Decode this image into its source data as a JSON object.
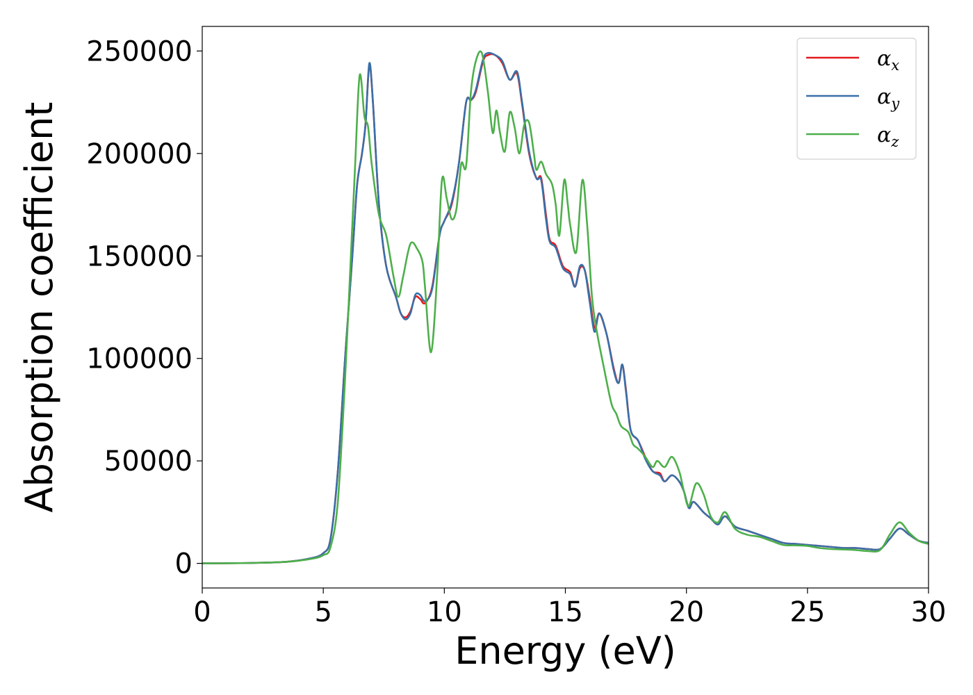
{
  "chart_data": {
    "type": "line",
    "title": "",
    "xlabel": "Energy (eV)",
    "ylabel": "Absorption coefficient",
    "xlim": [
      0,
      30
    ],
    "ylim": [
      -12000,
      262000
    ],
    "xticks": [
      0,
      5,
      10,
      15,
      20,
      25,
      30
    ],
    "yticks": [
      0,
      50000,
      100000,
      150000,
      200000,
      250000
    ],
    "grid": false,
    "legend_position": "top-right",
    "series": [
      {
        "name": "α_x",
        "legend_main": "α",
        "legend_sub": "x",
        "color": "#e41a1c",
        "points": [
          [
            0,
            0
          ],
          [
            2,
            200
          ],
          [
            3.5,
            800
          ],
          [
            4.5,
            2500
          ],
          [
            5,
            5000
          ],
          [
            5.3,
            12000
          ],
          [
            5.6,
            45000
          ],
          [
            5.9,
            100000
          ],
          [
            6.2,
            150000
          ],
          [
            6.4,
            185000
          ],
          [
            6.6,
            200000
          ],
          [
            6.75,
            215000
          ],
          [
            6.9,
            243000
          ],
          [
            7.05,
            225000
          ],
          [
            7.3,
            175000
          ],
          [
            7.6,
            145000
          ],
          [
            8.0,
            130000
          ],
          [
            8.2,
            122000
          ],
          [
            8.4,
            120000
          ],
          [
            8.6,
            123000
          ],
          [
            8.8,
            130000
          ],
          [
            9.0,
            129000
          ],
          [
            9.2,
            127000
          ],
          [
            9.5,
            135000
          ],
          [
            9.8,
            160000
          ],
          [
            10.0,
            167000
          ],
          [
            10.3,
            175000
          ],
          [
            10.6,
            195000
          ],
          [
            10.9,
            225000
          ],
          [
            11.1,
            226000
          ],
          [
            11.3,
            230000
          ],
          [
            11.6,
            245000
          ],
          [
            11.8,
            248000
          ],
          [
            12.1,
            248000
          ],
          [
            12.4,
            244000
          ],
          [
            12.7,
            236000
          ],
          [
            13.0,
            239000
          ],
          [
            13.2,
            225000
          ],
          [
            13.5,
            200000
          ],
          [
            13.8,
            188000
          ],
          [
            14.0,
            188000
          ],
          [
            14.2,
            170000
          ],
          [
            14.35,
            158000
          ],
          [
            14.6,
            155000
          ],
          [
            14.9,
            145000
          ],
          [
            15.2,
            142000
          ],
          [
            15.4,
            135000
          ],
          [
            15.6,
            144000
          ],
          [
            15.8,
            143000
          ],
          [
            16.0,
            130000
          ],
          [
            16.2,
            115000
          ],
          [
            16.4,
            122000
          ],
          [
            16.7,
            112000
          ],
          [
            17.0,
            95000
          ],
          [
            17.2,
            88000
          ],
          [
            17.35,
            97000
          ],
          [
            17.5,
            85000
          ],
          [
            17.7,
            65000
          ],
          [
            18.0,
            60000
          ],
          [
            18.3,
            52000
          ],
          [
            18.6,
            45000
          ],
          [
            18.9,
            44000
          ],
          [
            19.1,
            40000
          ],
          [
            19.4,
            43000
          ],
          [
            19.7,
            40000
          ],
          [
            19.9,
            35000
          ],
          [
            20.1,
            27000
          ],
          [
            20.3,
            30000
          ],
          [
            20.7,
            25000
          ],
          [
            21.0,
            22000
          ],
          [
            21.3,
            19000
          ],
          [
            21.6,
            23000
          ],
          [
            22.0,
            18000
          ],
          [
            22.5,
            16000
          ],
          [
            23.0,
            14000
          ],
          [
            23.5,
            12000
          ],
          [
            24.0,
            10000
          ],
          [
            24.5,
            9500
          ],
          [
            25.0,
            9000
          ],
          [
            25.5,
            8500
          ],
          [
            26.0,
            8000
          ],
          [
            26.5,
            7500
          ],
          [
            27.0,
            7500
          ],
          [
            27.5,
            7000
          ],
          [
            28.0,
            7000
          ],
          [
            28.4,
            12000
          ],
          [
            28.8,
            17000
          ],
          [
            29.2,
            14000
          ],
          [
            29.6,
            11000
          ],
          [
            30,
            10000
          ]
        ]
      },
      {
        "name": "α_y",
        "legend_main": "α",
        "legend_sub": "y",
        "color": "#3a6fa8",
        "points": [
          [
            0,
            0
          ],
          [
            2,
            200
          ],
          [
            3.5,
            800
          ],
          [
            4.5,
            2500
          ],
          [
            5,
            5000
          ],
          [
            5.3,
            12000
          ],
          [
            5.6,
            45000
          ],
          [
            5.9,
            100000
          ],
          [
            6.2,
            150000
          ],
          [
            6.4,
            185000
          ],
          [
            6.6,
            200000
          ],
          [
            6.75,
            215000
          ],
          [
            6.9,
            244000
          ],
          [
            7.05,
            225000
          ],
          [
            7.3,
            175000
          ],
          [
            7.6,
            145000
          ],
          [
            8.0,
            130000
          ],
          [
            8.2,
            122000
          ],
          [
            8.4,
            119000
          ],
          [
            8.6,
            122000
          ],
          [
            8.8,
            131000
          ],
          [
            9.0,
            131000
          ],
          [
            9.2,
            128000
          ],
          [
            9.5,
            134000
          ],
          [
            9.8,
            160000
          ],
          [
            10.0,
            167000
          ],
          [
            10.3,
            176000
          ],
          [
            10.6,
            195000
          ],
          [
            10.9,
            225000
          ],
          [
            11.1,
            226000
          ],
          [
            11.3,
            231000
          ],
          [
            11.6,
            246000
          ],
          [
            11.8,
            249000
          ],
          [
            12.1,
            248000
          ],
          [
            12.4,
            245000
          ],
          [
            12.7,
            236000
          ],
          [
            13.0,
            240000
          ],
          [
            13.2,
            226000
          ],
          [
            13.5,
            201000
          ],
          [
            13.8,
            188000
          ],
          [
            14.0,
            187000
          ],
          [
            14.2,
            168000
          ],
          [
            14.35,
            157000
          ],
          [
            14.6,
            154000
          ],
          [
            14.9,
            144000
          ],
          [
            15.2,
            141000
          ],
          [
            15.4,
            135000
          ],
          [
            15.6,
            145000
          ],
          [
            15.8,
            143000
          ],
          [
            16.0,
            128000
          ],
          [
            16.2,
            113000
          ],
          [
            16.4,
            122000
          ],
          [
            16.7,
            112000
          ],
          [
            17.0,
            94000
          ],
          [
            17.2,
            88000
          ],
          [
            17.35,
            97000
          ],
          [
            17.5,
            84000
          ],
          [
            17.7,
            65000
          ],
          [
            18.0,
            60000
          ],
          [
            18.3,
            51000
          ],
          [
            18.6,
            45000
          ],
          [
            18.9,
            43000
          ],
          [
            19.1,
            40000
          ],
          [
            19.4,
            43000
          ],
          [
            19.7,
            40000
          ],
          [
            19.9,
            35000
          ],
          [
            20.1,
            27000
          ],
          [
            20.3,
            30000
          ],
          [
            20.7,
            25000
          ],
          [
            21.0,
            22000
          ],
          [
            21.3,
            19000
          ],
          [
            21.6,
            23000
          ],
          [
            22.0,
            18000
          ],
          [
            22.5,
            16000
          ],
          [
            23.0,
            14000
          ],
          [
            23.5,
            12000
          ],
          [
            24.0,
            10000
          ],
          [
            24.5,
            9500
          ],
          [
            25.0,
            9000
          ],
          [
            25.5,
            8500
          ],
          [
            26.0,
            8000
          ],
          [
            26.5,
            7500
          ],
          [
            27.0,
            7500
          ],
          [
            27.5,
            7000
          ],
          [
            28.0,
            7000
          ],
          [
            28.4,
            12000
          ],
          [
            28.8,
            17000
          ],
          [
            29.2,
            14000
          ],
          [
            29.6,
            11000
          ],
          [
            30,
            10000
          ]
        ]
      },
      {
        "name": "α_z",
        "legend_main": "α",
        "legend_sub": "z",
        "color": "#4daf4a",
        "points": [
          [
            0,
            0
          ],
          [
            2,
            200
          ],
          [
            3.5,
            800
          ],
          [
            4.5,
            2200
          ],
          [
            5,
            4000
          ],
          [
            5.3,
            8000
          ],
          [
            5.6,
            30000
          ],
          [
            5.9,
            90000
          ],
          [
            6.1,
            140000
          ],
          [
            6.3,
            190000
          ],
          [
            6.5,
            238000
          ],
          [
            6.7,
            218000
          ],
          [
            6.85,
            213000
          ],
          [
            7.0,
            195000
          ],
          [
            7.3,
            170000
          ],
          [
            7.6,
            160000
          ],
          [
            7.9,
            140000
          ],
          [
            8.1,
            130000
          ],
          [
            8.3,
            140000
          ],
          [
            8.6,
            156000
          ],
          [
            8.9,
            153000
          ],
          [
            9.1,
            147000
          ],
          [
            9.2,
            135000
          ],
          [
            9.45,
            103000
          ],
          [
            9.7,
            140000
          ],
          [
            9.9,
            187000
          ],
          [
            10.1,
            178000
          ],
          [
            10.3,
            168000
          ],
          [
            10.5,
            173000
          ],
          [
            10.7,
            195000
          ],
          [
            10.9,
            194000
          ],
          [
            11.1,
            230000
          ],
          [
            11.3,
            245000
          ],
          [
            11.55,
            249000
          ],
          [
            11.8,
            230000
          ],
          [
            12.0,
            210000
          ],
          [
            12.15,
            221000
          ],
          [
            12.3,
            210000
          ],
          [
            12.5,
            201000
          ],
          [
            12.7,
            220000
          ],
          [
            12.9,
            213000
          ],
          [
            13.1,
            200000
          ],
          [
            13.3,
            214000
          ],
          [
            13.5,
            215000
          ],
          [
            13.7,
            200000
          ],
          [
            13.8,
            192000
          ],
          [
            14.0,
            196000
          ],
          [
            14.2,
            190000
          ],
          [
            14.45,
            185000
          ],
          [
            14.6,
            175000
          ],
          [
            14.75,
            160000
          ],
          [
            14.95,
            187000
          ],
          [
            15.1,
            175000
          ],
          [
            15.2,
            165000
          ],
          [
            15.45,
            152000
          ],
          [
            15.7,
            187000
          ],
          [
            15.9,
            165000
          ],
          [
            16.1,
            130000
          ],
          [
            16.3,
            113000
          ],
          [
            16.6,
            95000
          ],
          [
            16.9,
            78000
          ],
          [
            17.1,
            73000
          ],
          [
            17.3,
            67000
          ],
          [
            17.6,
            64000
          ],
          [
            17.8,
            58000
          ],
          [
            18.0,
            56000
          ],
          [
            18.3,
            52000
          ],
          [
            18.6,
            47000
          ],
          [
            18.8,
            50000
          ],
          [
            19.1,
            47000
          ],
          [
            19.4,
            52000
          ],
          [
            19.7,
            45000
          ],
          [
            19.9,
            35000
          ],
          [
            20.1,
            28000
          ],
          [
            20.4,
            39000
          ],
          [
            20.7,
            34000
          ],
          [
            21.0,
            23000
          ],
          [
            21.3,
            20000
          ],
          [
            21.6,
            25000
          ],
          [
            22.0,
            17000
          ],
          [
            22.5,
            14000
          ],
          [
            23.0,
            13000
          ],
          [
            23.5,
            11000
          ],
          [
            24.0,
            9000
          ],
          [
            24.5,
            8800
          ],
          [
            25.0,
            8500
          ],
          [
            25.5,
            7500
          ],
          [
            26.0,
            7000
          ],
          [
            26.5,
            6800
          ],
          [
            27.0,
            6500
          ],
          [
            27.5,
            6000
          ],
          [
            28.0,
            6500
          ],
          [
            28.4,
            14000
          ],
          [
            28.8,
            20000
          ],
          [
            29.2,
            15000
          ],
          [
            29.6,
            11000
          ],
          [
            30,
            9500
          ]
        ]
      }
    ]
  }
}
